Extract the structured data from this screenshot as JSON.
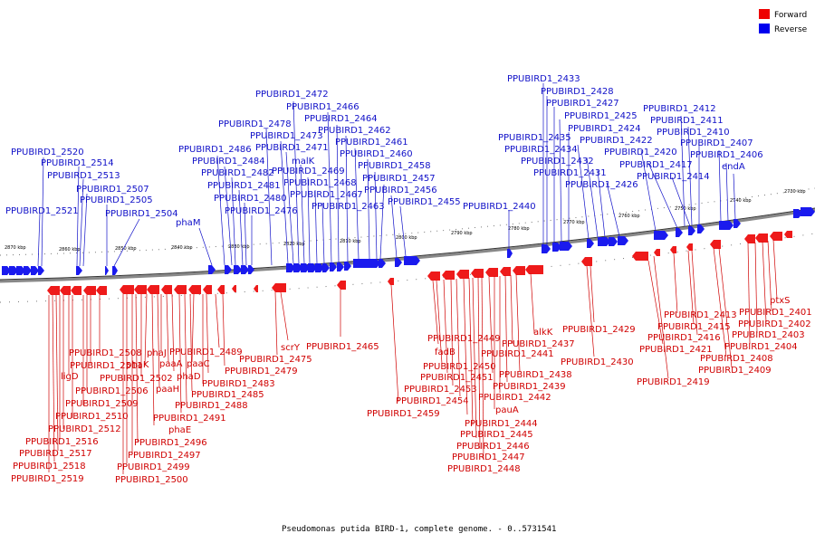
{
  "legend": {
    "forward": {
      "label": "Forward",
      "color": "#ee0000"
    },
    "reverse": {
      "label": "Reverse",
      "color": "#0000ee"
    }
  },
  "caption": "Pseudomonas putida BIRD-1, complete genome. - 0..5731541",
  "ticks": [
    "2870 kbp",
    "2860 kbp",
    "2850 kbp",
    "2840 kbp",
    "2830 kbp",
    "2820 kbp",
    "2810 kbp",
    "2800 kbp",
    "2790 kbp",
    "2780 kbp",
    "2770 kbp",
    "2760 kbp",
    "2750 kbp",
    "2740 kbp",
    "2730 kbp"
  ],
  "reverse_labels": [
    "PPUBIRD1_2521",
    "PPUBIRD1_2520",
    "PPUBIRD1_2514",
    "PPUBIRD1_2513",
    "PPUBIRD1_2507",
    "PPUBIRD1_2505",
    "PPUBIRD1_2504",
    "phaM",
    "PPUBIRD1_2486",
    "PPUBIRD1_2484",
    "PPUBIRD1_2482",
    "PPUBIRD1_2481",
    "PPUBIRD1_2480",
    "PPUBIRD1_2476",
    "PPUBIRD1_2478",
    "PPUBIRD1_2473",
    "PPUBIRD1_2471",
    "PPUBIRD1_2472",
    "PPUBIRD1_2466",
    "PPUBIRD1_2464",
    "PPUBIRD1_2462",
    "PPUBIRD1_2461",
    "PPUBIRD1_2460",
    "malK",
    "PPUBIRD1_2469",
    "PPUBIRD1_2468",
    "PPUBIRD1_2467",
    "PPUBIRD1_2463",
    "PPUBIRD1_2458",
    "PPUBIRD1_2457",
    "PPUBIRD1_2456",
    "PPUBIRD1_2455",
    "PPUBIRD1_2440",
    "PPUBIRD1_2433",
    "PPUBIRD1_2428",
    "PPUBIRD1_2427",
    "PPUBIRD1_2425",
    "PPUBIRD1_2424",
    "PPUBIRD1_2422",
    "PPUBIRD1_2435",
    "PPUBIRD1_2434",
    "PPUBIRD1_2432",
    "PPUBIRD1_2431",
    "PPUBIRD1_2426",
    "PPUBIRD1_2420",
    "PPUBIRD1_2417",
    "PPUBIRD1_2414",
    "PPUBIRD1_2412",
    "PPUBIRD1_2411",
    "PPUBIRD1_2410",
    "PPUBIRD1_2407",
    "PPUBIRD1_2406",
    "endA"
  ],
  "forward_labels": [
    "PPUBIRD1_2508",
    "PPUBIRD1_2511",
    "ligD",
    "PPUBIRD1_2506",
    "PPUBIRD1_2509",
    "PPUBIRD1_2510",
    "PPUBIRD1_2512",
    "PPUBIRD1_2516",
    "PPUBIRD1_2517",
    "PPUBIRD1_2518",
    "PPUBIRD1_2519",
    "phaK",
    "PPUBIRD1_2502",
    "paaH",
    "phaJ",
    "paaA",
    "phaD",
    "phaE",
    "PPUBIRD1_2496",
    "PPUBIRD1_2497",
    "PPUBIRD1_2499",
    "PPUBIRD1_2500",
    "PPUBIRD1_2489",
    "paaC",
    "PPUBIRD1_2483",
    "PPUBIRD1_2485",
    "PPUBIRD1_2488",
    "PPUBIRD1_2491",
    "PPUBIRD1_2479",
    "PPUBIRD1_2475",
    "scrY",
    "PPUBIRD1_2465",
    "PPUBIRD1_2459",
    "PPUBIRD1_2449",
    "fadB",
    "PPUBIRD1_2450",
    "PPUBIRD1_2451",
    "PPUBIRD1_2453",
    "PPUBIRD1_2454",
    "PPUBIRD1_2441",
    "PPUBIRD1_2437",
    "alkK",
    "PPUBIRD1_2438",
    "PPUBIRD1_2439",
    "PPUBIRD1_2442",
    "pauA",
    "PPUBIRD1_2444",
    "PPUBIRD1_2445",
    "PPUBIRD1_2446",
    "PPUBIRD1_2447",
    "PPUBIRD1_2448",
    "PPUBIRD1_2429",
    "PPUBIRD1_2430",
    "PPUBIRD1_2421",
    "PPUBIRD1_2419",
    "PPUBIRD1_2413",
    "PPUBIRD1_2415",
    "PPUBIRD1_2416",
    "ptxS",
    "PPUBIRD1_2401",
    "PPUBIRD1_2402",
    "PPUBIRD1_2403",
    "PPUBIRD1_2404",
    "PPUBIRD1_2408",
    "PPUBIRD1_2409"
  ]
}
